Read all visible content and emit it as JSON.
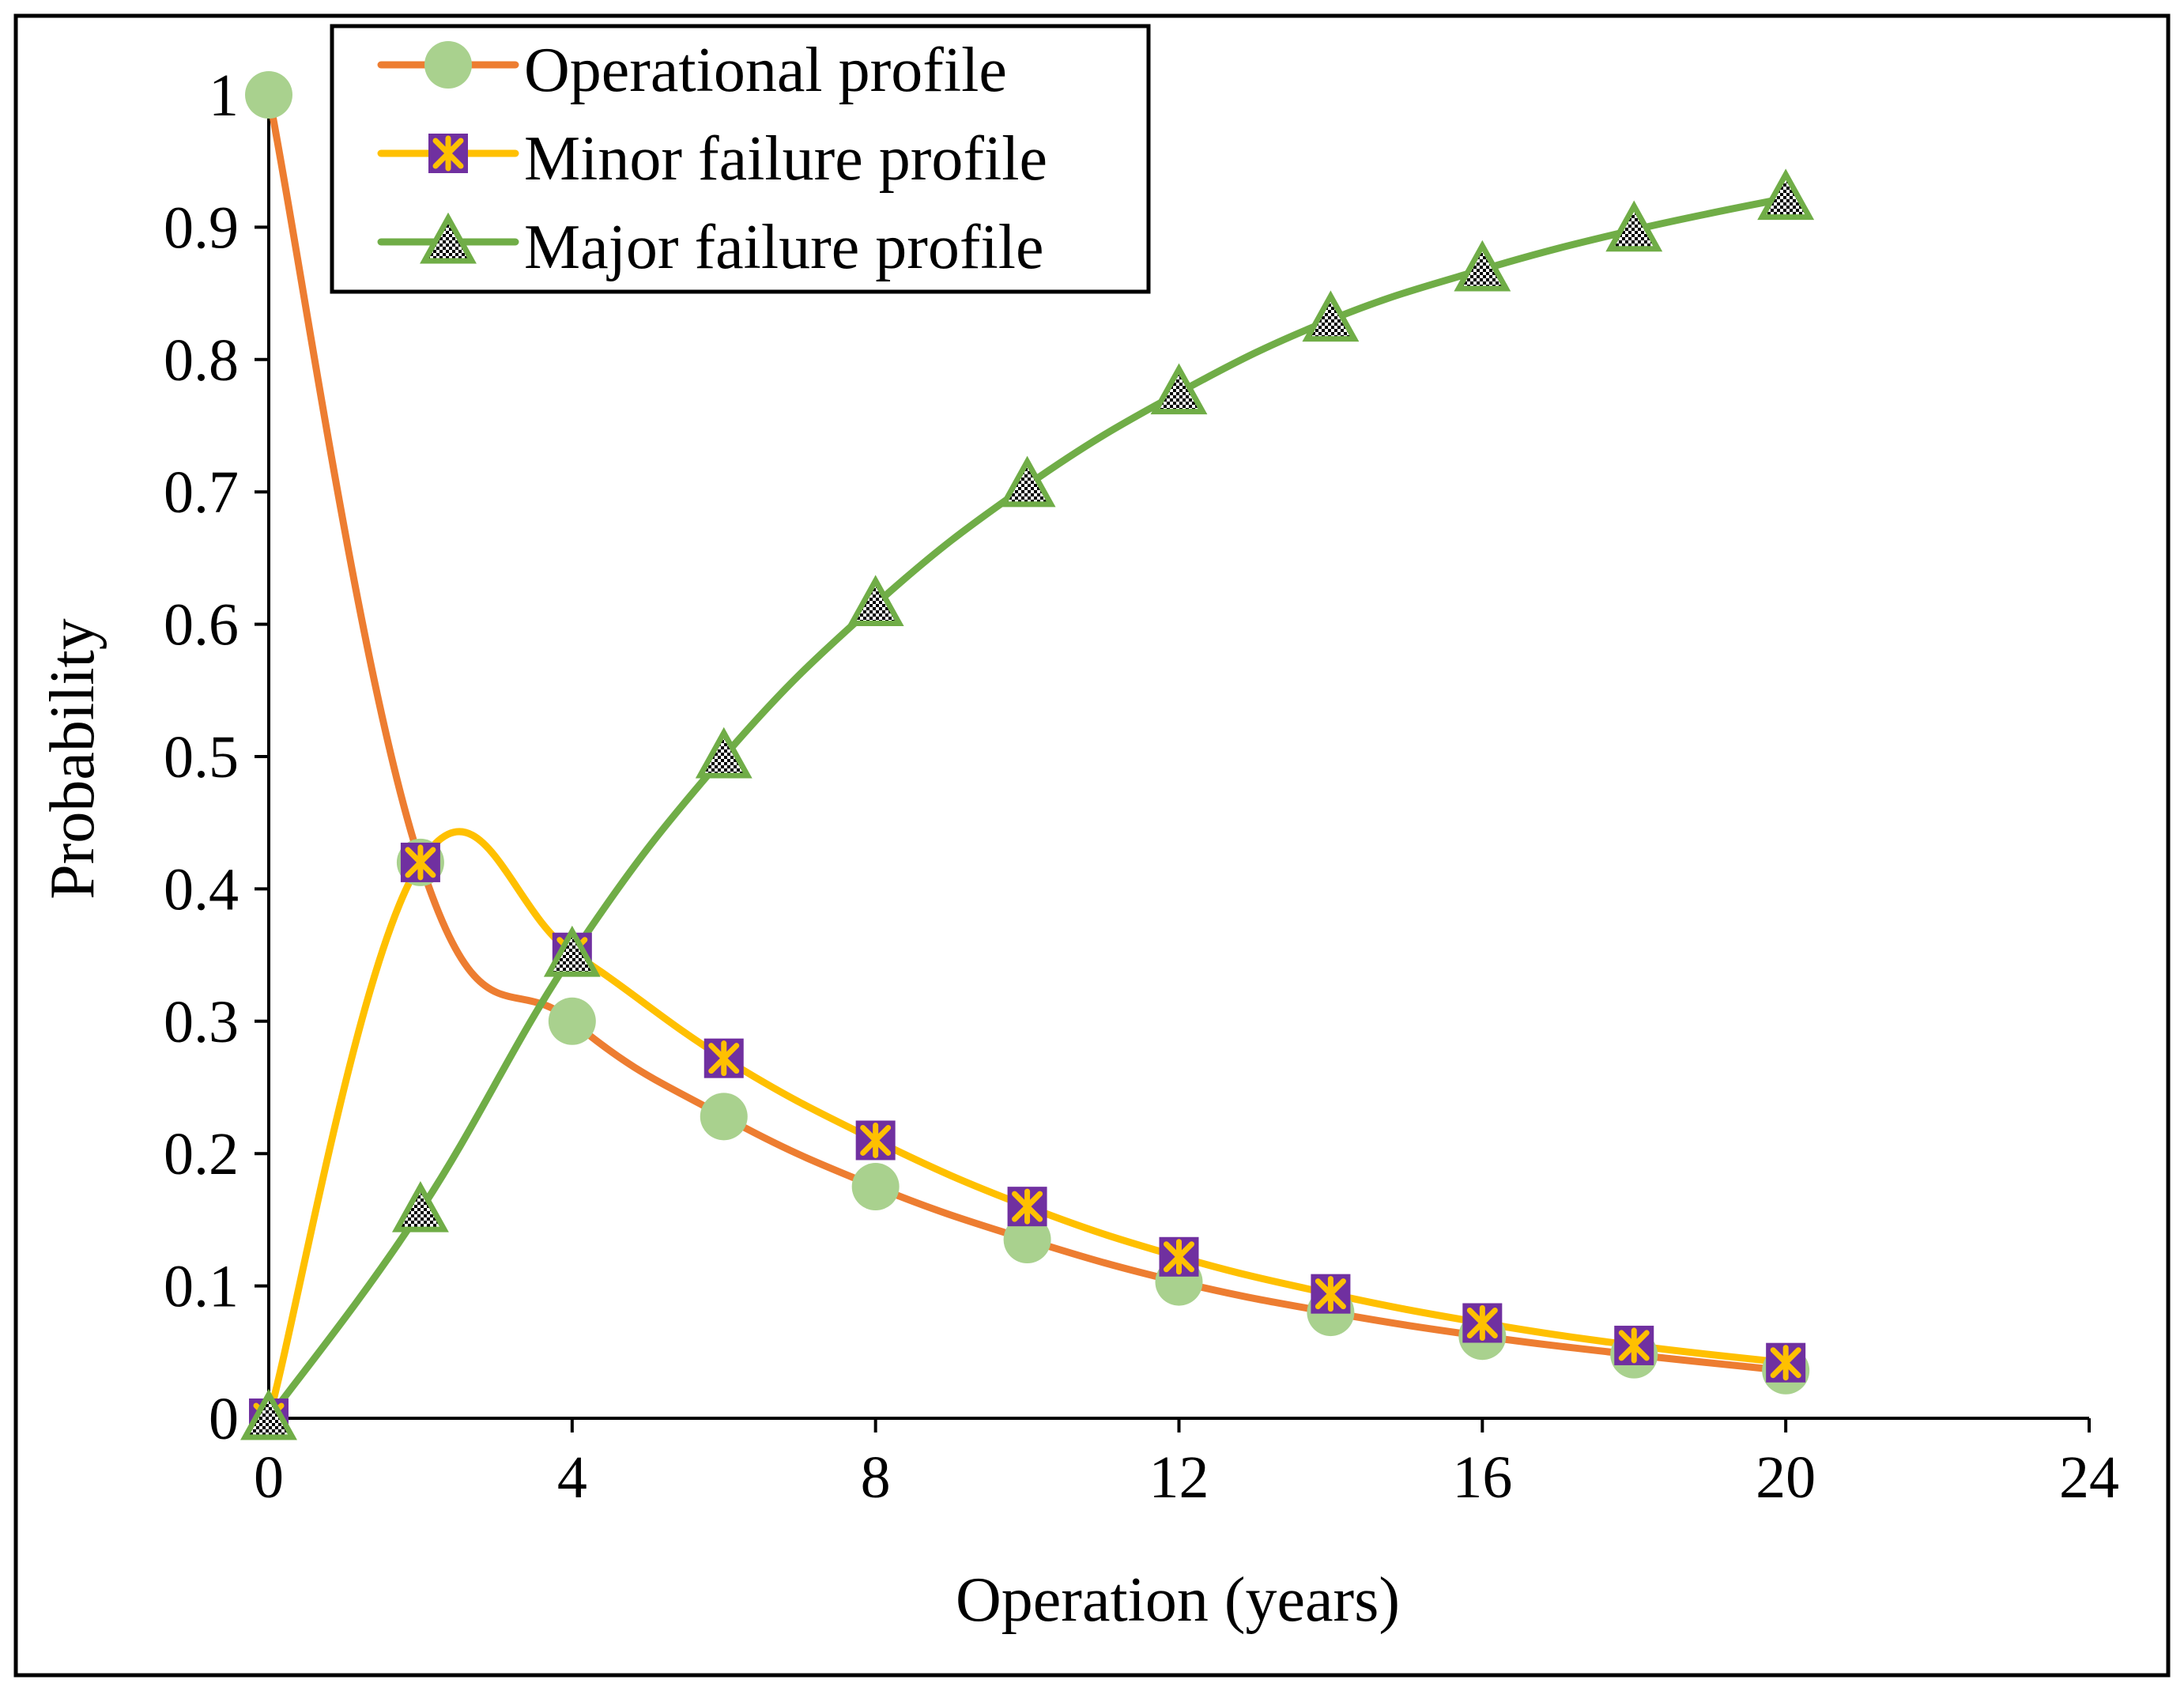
{
  "chart_data": {
    "type": "line",
    "title": "",
    "xlabel": "Operation (years)",
    "ylabel": "Probability",
    "xlim": [
      0,
      24
    ],
    "ylim": [
      0,
      1
    ],
    "xticks": [
      0,
      4,
      8,
      12,
      16,
      20,
      24
    ],
    "yticks": [
      0,
      0.1,
      0.2,
      0.3,
      0.4,
      0.5,
      0.6,
      0.7,
      0.8,
      0.9,
      1
    ],
    "grid": false,
    "legend_position": "top-left",
    "series": [
      {
        "name": "Operational profile",
        "color": "#ED7D31",
        "marker": "circle",
        "marker_color": "#A9D18E",
        "x": [
          0,
          2,
          4,
          6,
          8,
          10,
          12,
          14,
          16,
          18,
          20
        ],
        "values": [
          1.0,
          0.42,
          0.3,
          0.228,
          0.175,
          0.135,
          0.103,
          0.08,
          0.062,
          0.048,
          0.036
        ]
      },
      {
        "name": "Minor failure profile",
        "color": "#FFC000",
        "marker": "square-asterisk",
        "marker_color": "#7030A0",
        "x": [
          0,
          2,
          4,
          6,
          8,
          10,
          12,
          14,
          16,
          18,
          20
        ],
        "values": [
          0.0,
          0.42,
          0.352,
          0.272,
          0.21,
          0.16,
          0.122,
          0.094,
          0.072,
          0.055,
          0.042
        ]
      },
      {
        "name": "Major failure profile",
        "color": "#70AD47",
        "marker": "triangle",
        "marker_color": "#70AD47",
        "x": [
          0,
          2,
          4,
          6,
          8,
          10,
          12,
          14,
          16,
          18,
          20
        ],
        "values": [
          0.0,
          0.157,
          0.35,
          0.5,
          0.615,
          0.705,
          0.775,
          0.83,
          0.868,
          0.898,
          0.922
        ]
      }
    ]
  }
}
